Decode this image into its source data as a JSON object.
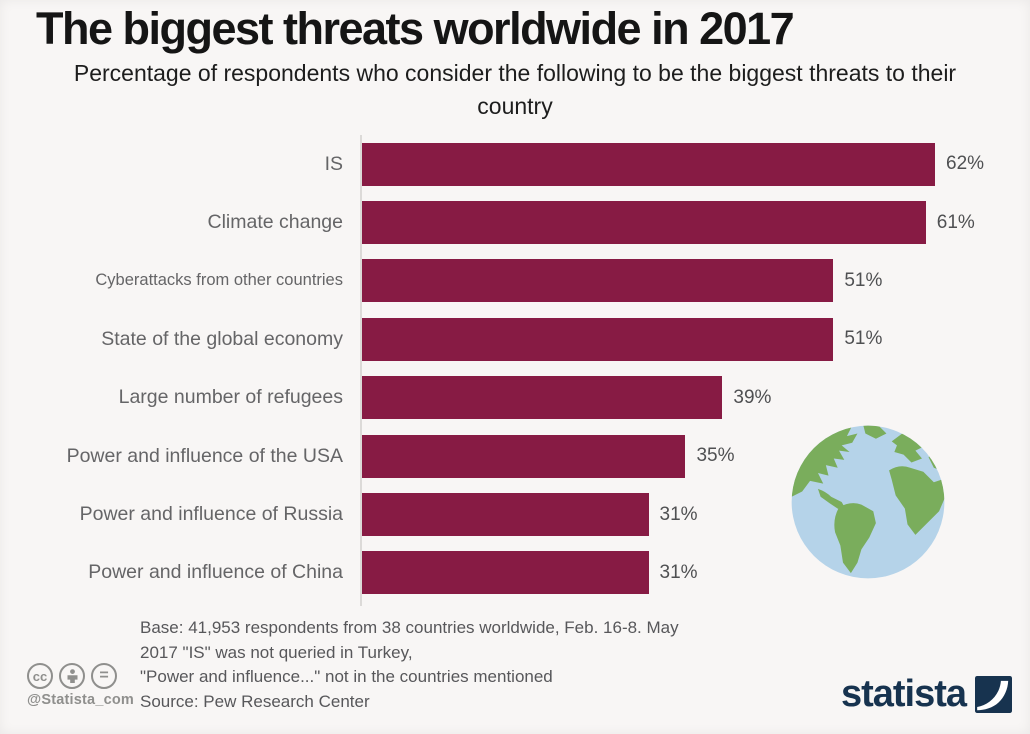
{
  "title": "The biggest threats worldwide in 2017",
  "subtitle": "Percentage of respondents who consider the following to be the biggest threats to their country",
  "chart_data": {
    "type": "bar",
    "orientation": "horizontal",
    "categories": [
      "IS",
      "Climate change",
      "Cyberattacks from other countries",
      "State of the global economy",
      "Large number of refugees",
      "Power and influence of the USA",
      "Power and influence of Russia",
      "Power and influence of China"
    ],
    "values": [
      62,
      61,
      51,
      51,
      39,
      35,
      31,
      31
    ],
    "value_suffix": "%",
    "title": "The biggest threats worldwide in 2017",
    "xlabel": "",
    "ylabel": "",
    "xlim": [
      0,
      70
    ],
    "grid": false,
    "legend": false,
    "bar_color": "#871b44",
    "data_labels": [
      "62%",
      "61%",
      "51%",
      "51%",
      "39%",
      "35%",
      "31%",
      "31%"
    ]
  },
  "footer": {
    "note_lines": [
      "Base: 41,953 respondents from 38 countries worldwide, Feb. 16-8. May",
      "2017 \"IS\" was not queried in Turkey,",
      "\"Power and influence...\" not in the countries mentioned",
      "Source: Pew Research Center"
    ],
    "handle": "@Statista_com",
    "brand": "statista",
    "cc_icons": [
      "cc-icon",
      "cc-attribution-icon",
      "cc-nd-icon"
    ],
    "cc_equals_glyph": "="
  },
  "icons": {
    "earth-globe-icon": "illustrated earth globe, blue ocean with green continents",
    "statista-swoosh-icon": "navy square with white diagonal swoosh",
    "cc-icon": "cc",
    "cc-attribution-icon": "person in circle",
    "cc-nd-icon": "equals sign in circle"
  },
  "colors": {
    "background": "#f8f6f5",
    "bar": "#871b44",
    "axis_line": "#dcdad8",
    "label_text": "#656567",
    "value_text": "#4f5052",
    "note_text": "#57575a",
    "brand_navy": "#17334f",
    "globe_ocean": "#b5d3e9",
    "globe_land": "#7aad5c",
    "cc_gray": "#8f8f8d"
  }
}
